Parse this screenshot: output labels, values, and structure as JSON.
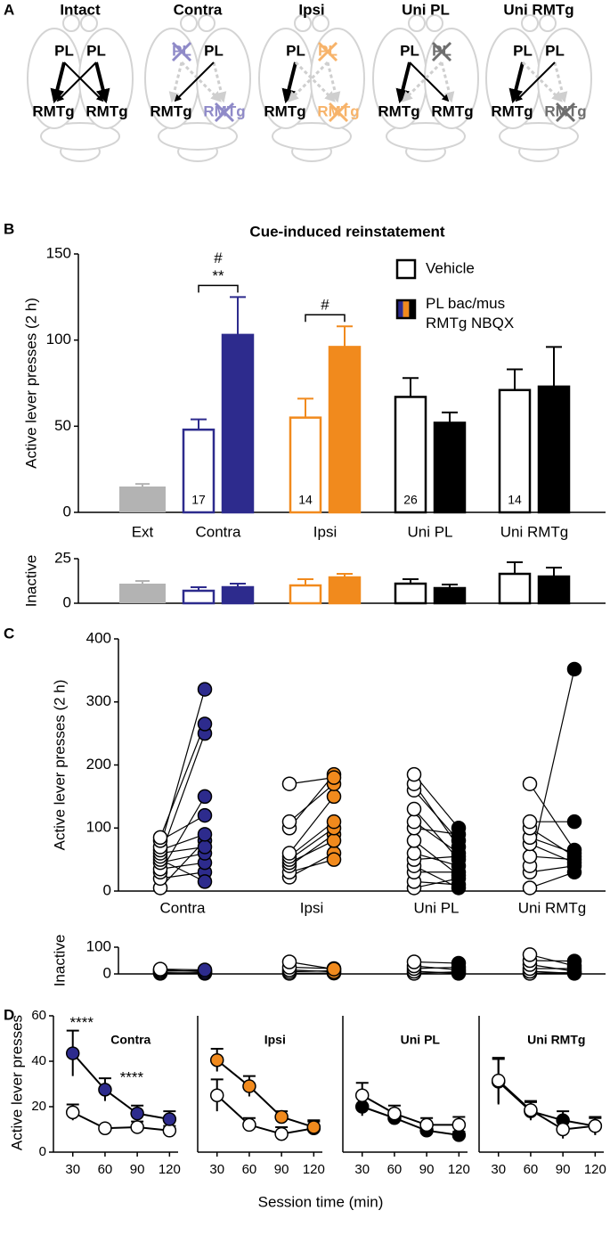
{
  "panel_labels": [
    "A",
    "B",
    "C",
    "D"
  ],
  "diagram": {
    "panels": [
      {
        "title": "Intact",
        "off_color": "#999999",
        "nodes": [
          {
            "label": "PL",
            "off": false
          },
          {
            "label": "PL",
            "off": false
          },
          {
            "label": "RMTg",
            "off": false
          },
          {
            "label": "RMTg",
            "off": false
          }
        ]
      },
      {
        "title": "Contra",
        "off_color": "#8f8ac8",
        "nodes": [
          {
            "label": "PL",
            "off": true
          },
          {
            "label": "PL",
            "off": false
          },
          {
            "label": "RMTg",
            "off": false
          },
          {
            "label": "RMTg",
            "off": true
          }
        ]
      },
      {
        "title": "Ipsi",
        "off_color": "#f7b36a",
        "nodes": [
          {
            "label": "PL",
            "off": false
          },
          {
            "label": "PL",
            "off": true
          },
          {
            "label": "RMTg",
            "off": false
          },
          {
            "label": "RMTg",
            "off": true
          }
        ]
      },
      {
        "title": "Uni PL",
        "off_color": "#6e6e6e",
        "nodes": [
          {
            "label": "PL",
            "off": false
          },
          {
            "label": "PL",
            "off": true
          },
          {
            "label": "RMTg",
            "off": false
          },
          {
            "label": "RMTg",
            "off": false
          }
        ]
      },
      {
        "title": "Uni RMTg",
        "off_color": "#6e6e6e",
        "nodes": [
          {
            "label": "PL",
            "off": false
          },
          {
            "label": "PL",
            "off": false
          },
          {
            "label": "RMTg",
            "off": false
          },
          {
            "label": "RMTg",
            "off": true
          }
        ]
      }
    ]
  },
  "panel_d": {
    "ylabel": "Active lever presses",
    "xlabel": "Session time (min)"
  },
  "chart_data": [
    {
      "type": "bar",
      "title": "Cue-induced reinstatement",
      "ylabel": "Active lever presses (2 h)",
      "categories": [
        "Ext",
        "Contra",
        "Ipsi",
        "Uni PL",
        "Uni RMTg"
      ],
      "category_colors": [
        "#b3b3b3",
        "#2d2b8d",
        "#f18a1d",
        "#000000",
        "#000000"
      ],
      "ext_bar": {
        "value": 15,
        "error": 1.5
      },
      "series": [
        {
          "name": "Vehicle",
          "values": [
            null,
            48,
            55,
            67,
            71
          ],
          "errors": [
            null,
            6,
            11,
            11,
            12
          ]
        },
        {
          "name": "PL bac/mus\nRMTg NBQX",
          "values": [
            null,
            103,
            96,
            52,
            73
          ],
          "errors": [
            null,
            22,
            12,
            6,
            23
          ]
        }
      ],
      "n_labels": [
        null,
        17,
        14,
        26,
        14
      ],
      "annotations": [
        {
          "category": 1,
          "labels": [
            "#",
            "**"
          ]
        },
        {
          "category": 2,
          "labels": [
            "#"
          ]
        }
      ],
      "ylim": [
        0,
        150
      ],
      "yticks": [
        0,
        50,
        100,
        150
      ]
    },
    {
      "type": "bar",
      "ylabel": "Inactive",
      "category_colors": [
        "#b3b3b3",
        "#2d2b8d",
        "#f18a1d",
        "#000000",
        "#000000"
      ],
      "ext_bar": {
        "value": 11,
        "error": 1.5
      },
      "series": [
        {
          "values": [
            null,
            7,
            10,
            11,
            16.5
          ],
          "errors": [
            null,
            2,
            3.5,
            2.5,
            6.5
          ]
        },
        {
          "values": [
            null,
            9,
            14.5,
            8.5,
            15
          ],
          "errors": [
            null,
            2,
            2,
            2,
            5
          ]
        }
      ],
      "ylim": [
        0,
        25
      ],
      "yticks": [
        0,
        25
      ]
    },
    {
      "type": "paired_dot",
      "ylabel": "Active lever presses (2 h)",
      "ylim": [
        0,
        400
      ],
      "yticks": [
        0,
        100,
        200,
        300,
        400
      ],
      "groups": [
        {
          "category": "Contra",
          "color": "#2d2b8d",
          "vehicle": [
            5,
            20,
            30,
            35,
            45,
            50,
            55,
            60,
            65,
            70,
            80,
            85
          ],
          "drug": [
            80,
            30,
            150,
            45,
            60,
            15,
            250,
            70,
            90,
            320,
            120,
            265
          ]
        },
        {
          "category": "Ipsi",
          "color": "#f18a1d",
          "vehicle": [
            22,
            30,
            40,
            45,
            50,
            55,
            60,
            100,
            110,
            170
          ],
          "drug": [
            60,
            50,
            90,
            80,
            100,
            110,
            150,
            185,
            170,
            180
          ]
        },
        {
          "category": "Uni PL",
          "color": "#000000",
          "vehicle": [
            5,
            15,
            30,
            40,
            50,
            60,
            80,
            100,
            110,
            130,
            160,
            170,
            185
          ],
          "drug": [
            20,
            10,
            30,
            5,
            55,
            40,
            25,
            90,
            60,
            50,
            80,
            70,
            100
          ]
        },
        {
          "category": "Uni RMTg",
          "color": "#000000",
          "vehicle": [
            5,
            30,
            40,
            55,
            75,
            85,
            100,
            110,
            170
          ],
          "drug": [
            30,
            40,
            352,
            50,
            45,
            60,
            55,
            110,
            65
          ]
        }
      ]
    },
    {
      "type": "paired_dot",
      "ylabel": "Inactive",
      "ylim": [
        0,
        100
      ],
      "yticks": [
        0,
        100
      ],
      "groups": [
        {
          "color": "#2d2b8d",
          "vehicle": [
            2,
            5,
            10,
            15,
            18
          ],
          "drug": [
            5,
            2,
            12,
            8,
            15
          ]
        },
        {
          "color": "#f18a1d",
          "vehicle": [
            2,
            8,
            15,
            25,
            45
          ],
          "drug": [
            3,
            12,
            8,
            20,
            18
          ]
        },
        {
          "color": "#000000",
          "vehicle": [
            2,
            10,
            20,
            30,
            45
          ],
          "drug": [
            8,
            2,
            25,
            15,
            40
          ]
        },
        {
          "color": "#000000",
          "vehicle": [
            2,
            10,
            20,
            35,
            50,
            72
          ],
          "drug": [
            5,
            2,
            20,
            10,
            48,
            30
          ]
        }
      ]
    },
    {
      "type": "line",
      "title": "Contra",
      "x": [
        30,
        60,
        90,
        120
      ],
      "xlim": [
        12,
        128
      ],
      "xticks": [
        30,
        60,
        90,
        120
      ],
      "ylim": [
        0,
        60
      ],
      "yticks": [
        0,
        20,
        40,
        60
      ],
      "series": [
        {
          "color": "#ffffff",
          "values": [
            17.5,
            10.5,
            11,
            9.5
          ],
          "errors": [
            3.5,
            1,
            2.5,
            2
          ]
        },
        {
          "color": "#2d2b8d",
          "values": [
            43.5,
            27.5,
            17,
            14.5
          ],
          "errors": [
            10,
            5,
            3.5,
            3.5
          ]
        }
      ],
      "annotations": [
        {
          "x": 30,
          "text": "****"
        },
        {
          "x": 60,
          "text": "****"
        }
      ]
    },
    {
      "type": "line",
      "title": "Ipsi",
      "x": [
        30,
        60,
        90,
        120
      ],
      "xlim": [
        12,
        128
      ],
      "xticks": [
        30,
        60,
        90,
        120
      ],
      "ylim": [
        0,
        60
      ],
      "series": [
        {
          "color": "#ffffff",
          "values": [
            25,
            12,
            8,
            10.5
          ],
          "errors": [
            7,
            3,
            3,
            3
          ]
        },
        {
          "color": "#f18a1d",
          "values": [
            40.5,
            29,
            15.5,
            11
          ],
          "errors": [
            5,
            4.5,
            2.5,
            3
          ]
        }
      ]
    },
    {
      "type": "line",
      "title": "Uni PL",
      "x": [
        30,
        60,
        90,
        120
      ],
      "xlim": [
        12,
        128
      ],
      "xticks": [
        30,
        60,
        90,
        120
      ],
      "ylim": [
        0,
        60
      ],
      "series": [
        {
          "color": "#000000",
          "values": [
            20,
            15,
            9.5,
            7.5
          ],
          "errors": [
            4,
            2.5,
            2,
            1.5
          ]
        },
        {
          "color": "#ffffff",
          "values": [
            25,
            17,
            12,
            12
          ],
          "errors": [
            5.5,
            3.5,
            3,
            3.5
          ]
        }
      ]
    },
    {
      "type": "line",
      "title": "Uni RMTg",
      "x": [
        30,
        60,
        90,
        120
      ],
      "xlim": [
        12,
        128
      ],
      "xticks": [
        30,
        60,
        90,
        120
      ],
      "ylim": [
        0,
        60
      ],
      "series": [
        {
          "color": "#000000",
          "values": [
            31,
            18,
            14,
            11.5
          ],
          "errors": [
            10,
            4,
            4,
            3.5
          ]
        },
        {
          "color": "#ffffff",
          "values": [
            31.5,
            18.5,
            10,
            11.5
          ],
          "errors": [
            10,
            4,
            4,
            4
          ]
        }
      ]
    }
  ]
}
